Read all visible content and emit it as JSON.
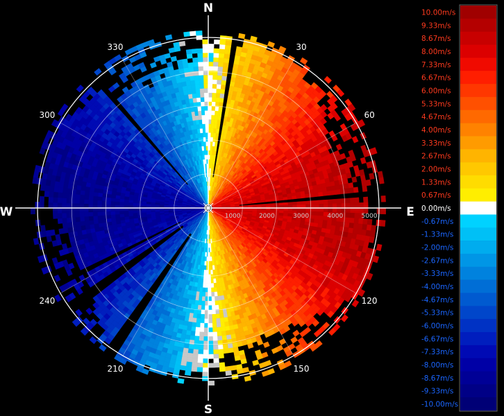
{
  "chart_data": {
    "type": "heatmap",
    "cardinal_labels": {
      "north": "N",
      "east": "E",
      "south": "S",
      "west": "W"
    },
    "azimuth_ticks": [
      {
        "deg": 30,
        "label": "30"
      },
      {
        "deg": 60,
        "label": "60"
      },
      {
        "deg": 120,
        "label": "120"
      },
      {
        "deg": 150,
        "label": "150"
      },
      {
        "deg": 210,
        "label": "210"
      },
      {
        "deg": 240,
        "label": "240"
      },
      {
        "deg": 300,
        "label": "300"
      },
      {
        "deg": 330,
        "label": "330"
      }
    ],
    "range_ticks": [
      {
        "value": 1000,
        "label": "1000"
      },
      {
        "value": 2000,
        "label": "2000"
      },
      {
        "value": 3000,
        "label": "3000"
      },
      {
        "value": 4000,
        "label": "4000"
      },
      {
        "value": 5000,
        "label": "5000"
      }
    ],
    "range_max": 5000,
    "colorbar": [
      {
        "label": "10.00m/s",
        "color": "#a00000"
      },
      {
        "label": "9.33m/s",
        "color": "#b40000"
      },
      {
        "label": "8.67m/s",
        "color": "#c80000"
      },
      {
        "label": "8.00m/s",
        "color": "#dc0000"
      },
      {
        "label": "7.33m/s",
        "color": "#f00a00"
      },
      {
        "label": "6.67m/s",
        "color": "#ff1e00"
      },
      {
        "label": "6.00m/s",
        "color": "#ff3700"
      },
      {
        "label": "5.33m/s",
        "color": "#ff5000"
      },
      {
        "label": "4.67m/s",
        "color": "#ff6900"
      },
      {
        "label": "4.00m/s",
        "color": "#ff8200"
      },
      {
        "label": "3.33m/s",
        "color": "#ff9b00"
      },
      {
        "label": "2.67m/s",
        "color": "#ffb400"
      },
      {
        "label": "2.00m/s",
        "color": "#ffc800"
      },
      {
        "label": "1.33m/s",
        "color": "#ffdc00"
      },
      {
        "label": "0.67m/s",
        "color": "#ffee00"
      },
      {
        "label": "0.00m/s",
        "color": "#ffffff"
      },
      {
        "label": "-0.67m/s",
        "color": "#00d2ff"
      },
      {
        "label": "-1.33m/s",
        "color": "#00c0f6"
      },
      {
        "label": "-2.00m/s",
        "color": "#00acee"
      },
      {
        "label": "-2.67m/s",
        "color": "#0096e6"
      },
      {
        "label": "-3.33m/s",
        "color": "#0082de"
      },
      {
        "label": "-4.00m/s",
        "color": "#006ed6"
      },
      {
        "label": "-4.67m/s",
        "color": "#005ad0"
      },
      {
        "label": "-5.33m/s",
        "color": "#0046ca"
      },
      {
        "label": "-6.00m/s",
        "color": "#0032c4"
      },
      {
        "label": "-6.67m/s",
        "color": "#001ebe"
      },
      {
        "label": "-7.33m/s",
        "color": "#000ab4"
      },
      {
        "label": "-8.00m/s",
        "color": "#0000a6"
      },
      {
        "label": "-8.67m/s",
        "color": "#000096"
      },
      {
        "label": "-9.33m/s",
        "color": "#000086"
      },
      {
        "label": "-10.00m/s",
        "color": "#000076"
      }
    ],
    "colorbar_label_colors": {
      "positive": "#ff3a1e",
      "zero": "#ffffff",
      "negative": "#1b66ff"
    },
    "vmin": -10,
    "vmax": 10,
    "velocity_model": {
      "description": "radial velocity vs azimuth; positive toward the east half, negative toward the west half",
      "max_speed_mps": 9.5,
      "zero_crossing_azimuths_deg": [
        0,
        180
      ]
    },
    "grid": true,
    "colorbar_position": "right"
  }
}
